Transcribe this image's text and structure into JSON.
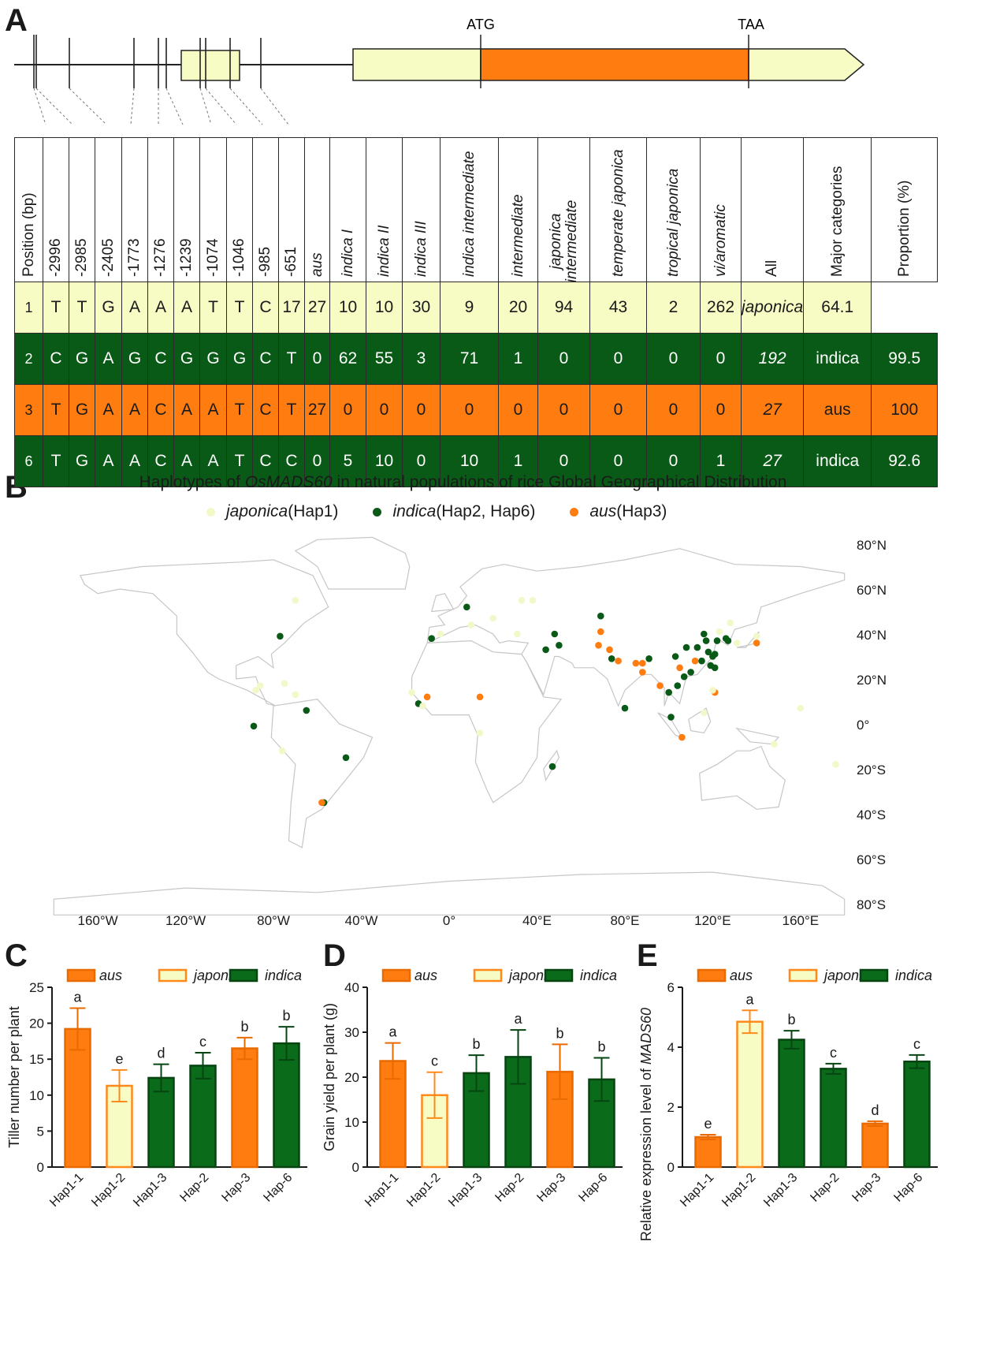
{
  "panel_letters": {
    "a": "A",
    "b": "B",
    "c": "C",
    "d": "D",
    "e": "E"
  },
  "gene": {
    "start_label": "ATG",
    "stop_label": "TAA"
  },
  "table": {
    "headers": [
      {
        "text": "Position (bp)",
        "italic": false
      },
      {
        "text": "-2996",
        "italic": false
      },
      {
        "text": "-2985",
        "italic": false
      },
      {
        "text": "-2405",
        "italic": false
      },
      {
        "text": "-1773",
        "italic": false
      },
      {
        "text": "-1276",
        "italic": false
      },
      {
        "text": "-1239",
        "italic": false
      },
      {
        "text": "-1074",
        "italic": false
      },
      {
        "text": "-1046",
        "italic": false
      },
      {
        "text": "-985",
        "italic": false
      },
      {
        "text": "-651",
        "italic": false
      },
      {
        "text": "aus",
        "italic": true
      },
      {
        "text": "indica I",
        "italic": true
      },
      {
        "text": "indica II",
        "italic": true
      },
      {
        "text": "indica III",
        "italic": true
      },
      {
        "text": "indica intermediate",
        "italic": true
      },
      {
        "text": "intermediate",
        "italic": true
      },
      {
        "text": "japonica intermediate",
        "italic": true
      },
      {
        "text": "temperate japonica",
        "italic": true
      },
      {
        "text": "tropical japonica",
        "italic": true
      },
      {
        "text": "vi/aromatic",
        "italic": true
      },
      {
        "text": "All",
        "italic": false
      },
      {
        "text": "Major categories",
        "italic": false
      },
      {
        "text": "Proportion (%)",
        "italic": false
      }
    ],
    "rows": [
      [
        "1",
        "T",
        "T",
        "G",
        "A",
        "A",
        "A",
        "T",
        "T",
        "C",
        "17",
        "27",
        "10",
        "10",
        "30",
        "9",
        "20",
        "94",
        "43",
        "2",
        "262",
        "japonica",
        "64.1"
      ],
      [
        "2",
        "C",
        "G",
        "A",
        "G",
        "C",
        "G",
        "G",
        "G",
        "C",
        "T",
        "0",
        "62",
        "55",
        "3",
        "71",
        "1",
        "0",
        "0",
        "0",
        "0",
        "192",
        "indica",
        "99.5"
      ],
      [
        "3",
        "T",
        "G",
        "A",
        "A",
        "C",
        "A",
        "A",
        "T",
        "C",
        "T",
        "27",
        "0",
        "0",
        "0",
        "0",
        "0",
        "0",
        "0",
        "0",
        "0",
        "27",
        "aus",
        "100"
      ],
      [
        "6",
        "T",
        "G",
        "A",
        "A",
        "C",
        "A",
        "A",
        "T",
        "C",
        "C",
        "0",
        "5",
        "10",
        "0",
        "10",
        "1",
        "0",
        "0",
        "0",
        "1",
        "27",
        "indica",
        "92.6"
      ]
    ],
    "row_colors": [
      "#f7fbc4",
      "#0a5a17",
      "#ff7c10",
      "#0a5a17"
    ]
  },
  "map": {
    "title_prefix": "Haplotypes of ",
    "title_gene": "OsMADS60",
    "title_suffix": " in natural populations of rice Global Geographical Distribution",
    "legend": [
      {
        "group": "japonica",
        "detail": " (Hap1)",
        "color": "#f3f8c8"
      },
      {
        "group": "indica",
        "detail": " (Hap2, Hap6)",
        "color": "#0a5a17"
      },
      {
        "group": "aus",
        "detail": " (Hap3)",
        "color": "#ff7c10"
      }
    ],
    "lat_labels": [
      "80°N",
      "60°N",
      "40°N",
      "20°N",
      "0°",
      "20°S",
      "40°S",
      "60°S",
      "80°S"
    ],
    "lon_labels": [
      "160°W",
      "120°W",
      "80°W",
      "40°W",
      "0°",
      "40°E",
      "80°E",
      "120°E",
      "160°E"
    ],
    "points": [
      {
        "lon": -77,
        "lat": 39,
        "hap": "indica"
      },
      {
        "lon": -89,
        "lat": -1,
        "hap": "indica"
      },
      {
        "lon": -65,
        "lat": 6,
        "hap": "indica"
      },
      {
        "lon": -47,
        "lat": -15,
        "hap": "indica"
      },
      {
        "lon": -57,
        "lat": -35,
        "hap": "indica"
      },
      {
        "lon": -58,
        "lat": -35,
        "hap": "aus"
      },
      {
        "lon": -8,
        "lat": 38,
        "hap": "indica"
      },
      {
        "lon": 8,
        "lat": 52,
        "hap": "indica"
      },
      {
        "lon": -14,
        "lat": 9,
        "hap": "indica"
      },
      {
        "lon": -10,
        "lat": 12,
        "hap": "aus"
      },
      {
        "lon": 14,
        "lat": 12,
        "hap": "aus"
      },
      {
        "lon": 47,
        "lat": -19,
        "hap": "indica"
      },
      {
        "lon": 44,
        "lat": 33,
        "hap": "indica"
      },
      {
        "lon": 48,
        "lat": 40,
        "hap": "indica"
      },
      {
        "lon": 50,
        "lat": 35,
        "hap": "indica"
      },
      {
        "lon": 69,
        "lat": 48,
        "hap": "indica"
      },
      {
        "lon": 69,
        "lat": 41,
        "hap": "aus"
      },
      {
        "lon": 68,
        "lat": 35,
        "hap": "aus"
      },
      {
        "lon": 73,
        "lat": 33,
        "hap": "aus"
      },
      {
        "lon": 74,
        "lat": 29,
        "hap": "indica"
      },
      {
        "lon": 77,
        "lat": 28,
        "hap": "aus"
      },
      {
        "lon": 80,
        "lat": 7,
        "hap": "indica"
      },
      {
        "lon": 85,
        "lat": 27,
        "hap": "aus"
      },
      {
        "lon": 88,
        "lat": 27,
        "hap": "aus"
      },
      {
        "lon": 91,
        "lat": 29,
        "hap": "indica"
      },
      {
        "lon": 88,
        "lat": 23,
        "hap": "aus"
      },
      {
        "lon": 96,
        "lat": 17,
        "hap": "aus"
      },
      {
        "lon": 100,
        "lat": 14,
        "hap": "indica"
      },
      {
        "lon": 101,
        "lat": 3,
        "hap": "indica"
      },
      {
        "lon": 106,
        "lat": -6,
        "hap": "aus"
      },
      {
        "lon": 105,
        "lat": 25,
        "hap": "aus"
      },
      {
        "lon": 103,
        "lat": 30,
        "hap": "indica"
      },
      {
        "lon": 104,
        "lat": 17,
        "hap": "indica"
      },
      {
        "lon": 107,
        "lat": 21,
        "hap": "indica"
      },
      {
        "lon": 108,
        "lat": 34,
        "hap": "indica"
      },
      {
        "lon": 110,
        "lat": 23,
        "hap": "indica"
      },
      {
        "lon": 112,
        "lat": 28,
        "hap": "aus"
      },
      {
        "lon": 113,
        "lat": 34,
        "hap": "indica"
      },
      {
        "lon": 115,
        "lat": 28,
        "hap": "indica"
      },
      {
        "lon": 116,
        "lat": 40,
        "hap": "indica"
      },
      {
        "lon": 117,
        "lat": 37,
        "hap": "indica"
      },
      {
        "lon": 118,
        "lat": 32,
        "hap": "indica"
      },
      {
        "lon": 119,
        "lat": 26,
        "hap": "indica"
      },
      {
        "lon": 120,
        "lat": 30,
        "hap": "indica"
      },
      {
        "lon": 121,
        "lat": 31,
        "hap": "indica"
      },
      {
        "lon": 121,
        "lat": 25,
        "hap": "indica"
      },
      {
        "lon": 121,
        "lat": 14,
        "hap": "aus"
      },
      {
        "lon": 122,
        "lat": 37,
        "hap": "indica"
      },
      {
        "lon": 126,
        "lat": 38,
        "hap": "indica"
      },
      {
        "lon": 127,
        "lat": 37,
        "hap": "indica"
      },
      {
        "lon": 140,
        "lat": 36,
        "hap": "aus"
      },
      {
        "lon": -75,
        "lat": 18,
        "hap": "japonica"
      },
      {
        "lon": -88,
        "lat": 15,
        "hap": "japonica"
      },
      {
        "lon": -86,
        "lat": 17,
        "hap": "japonica"
      },
      {
        "lon": -70,
        "lat": 13,
        "hap": "japonica"
      },
      {
        "lon": -76,
        "lat": -12,
        "hap": "japonica"
      },
      {
        "lon": -70,
        "lat": 55,
        "hap": "japonica"
      },
      {
        "lon": -4,
        "lat": 40,
        "hap": "japonica"
      },
      {
        "lon": 10,
        "lat": 44,
        "hap": "japonica"
      },
      {
        "lon": 20,
        "lat": 47,
        "hap": "japonica"
      },
      {
        "lon": 31,
        "lat": 40,
        "hap": "japonica"
      },
      {
        "lon": 38,
        "lat": 55,
        "hap": "japonica"
      },
      {
        "lon": -17,
        "lat": 14,
        "hap": "japonica"
      },
      {
        "lon": -12,
        "lat": 8,
        "hap": "japonica"
      },
      {
        "lon": 14,
        "lat": -4,
        "hap": "japonica"
      },
      {
        "lon": 33,
        "lat": 55,
        "hap": "japonica"
      },
      {
        "lon": 120,
        "lat": 15,
        "hap": "japonica"
      },
      {
        "lon": 123,
        "lat": 41,
        "hap": "japonica"
      },
      {
        "lon": 128,
        "lat": 45,
        "hap": "japonica"
      },
      {
        "lon": 131,
        "lat": 36,
        "hap": "japonica"
      },
      {
        "lon": 116,
        "lat": 5,
        "hap": "japonica"
      },
      {
        "lon": 148,
        "lat": -9,
        "hap": "japonica"
      },
      {
        "lon": 160,
        "lat": 7,
        "hap": "japonica"
      },
      {
        "lon": 176,
        "lat": -18,
        "hap": "japonica"
      },
      {
        "lon": 140,
        "lat": 39,
        "hap": "japonica"
      }
    ]
  },
  "bar_charts": {
    "legend_labels": [
      "aus",
      "japonica",
      "indica"
    ],
    "colors": {
      "aus": "#ff7c10",
      "japonica": "#f7fbc4",
      "japonica_stroke": "#ff8a1c",
      "indica": "#0a6b1a",
      "indica_dark": "#064512"
    }
  },
  "chart_data": [
    {
      "type": "bar",
      "panel": "C",
      "categories": [
        "Hap1-1",
        "Hap1-2",
        "Hap1-3",
        "Hap-2",
        "Hap-3",
        "Hap-6"
      ],
      "groups": [
        "aus",
        "japonica",
        "indica",
        "indica",
        "aus",
        "indica"
      ],
      "values": [
        19.2,
        11.3,
        12.4,
        14.1,
        16.5,
        17.2
      ],
      "errors": [
        2.9,
        2.2,
        1.9,
        1.8,
        1.5,
        2.3
      ],
      "letters": [
        "a",
        "e",
        "d",
        "c",
        "b",
        "b"
      ],
      "ylabel": "Tiller number per plant",
      "ylim": [
        0,
        25
      ],
      "yticks": [
        0,
        5,
        10,
        15,
        20,
        25
      ]
    },
    {
      "type": "bar",
      "panel": "D",
      "categories": [
        "Hap1-1",
        "Hap1-2",
        "Hap1-3",
        "Hap-2",
        "Hap-3",
        "Hap-6"
      ],
      "groups": [
        "aus",
        "japonica",
        "indica",
        "indica",
        "aus",
        "indica"
      ],
      "values": [
        23.6,
        16.0,
        20.9,
        24.5,
        21.2,
        19.5
      ],
      "errors": [
        4.0,
        5.1,
        4.0,
        6.0,
        6.1,
        4.8
      ],
      "letters": [
        "a",
        "c",
        "b",
        "a",
        "b",
        "b"
      ],
      "ylabel": "Grain yield per plant (g)",
      "ylim": [
        0,
        40
      ],
      "yticks": [
        0,
        10,
        20,
        30,
        40
      ]
    },
    {
      "type": "bar",
      "panel": "E",
      "categories": [
        "Hap1-1",
        "Hap1-2",
        "Hap1-3",
        "Hap-2",
        "Hap-3",
        "Hap-6"
      ],
      "groups": [
        "aus",
        "japonica",
        "indica",
        "indica",
        "aus",
        "indica"
      ],
      "values": [
        1.0,
        4.85,
        4.25,
        3.28,
        1.45,
        3.52
      ],
      "errors": [
        0.08,
        0.38,
        0.3,
        0.17,
        0.08,
        0.22
      ],
      "letters": [
        "e",
        "a",
        "b",
        "c",
        "d",
        "c"
      ],
      "ylabel_prefix": "Relative expression level of ",
      "ylabel_gene": "MADS60",
      "ylim": [
        0,
        6
      ],
      "yticks": [
        0,
        2,
        4,
        6
      ]
    }
  ]
}
